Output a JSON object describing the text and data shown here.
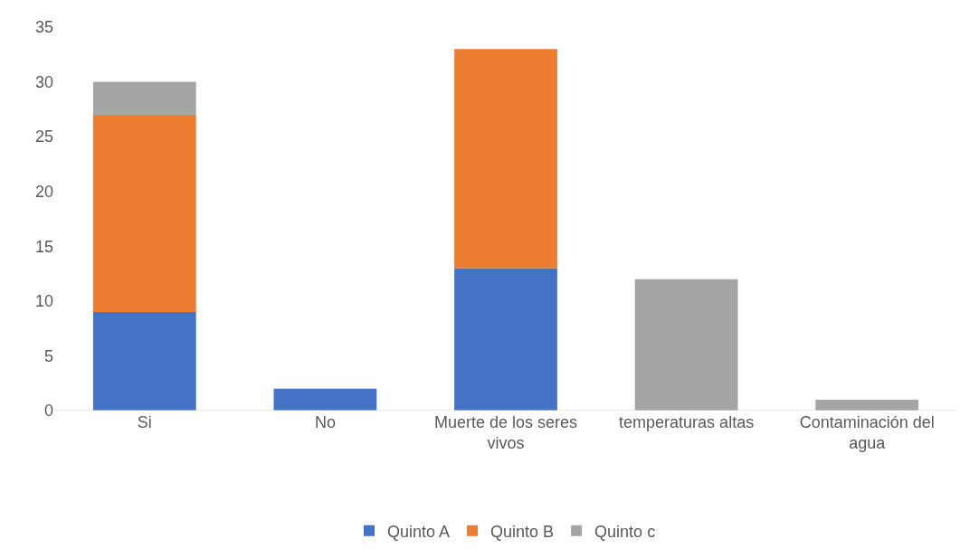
{
  "chart_data": {
    "type": "bar",
    "stacked": true,
    "categories": [
      "Si",
      "No",
      "Muerte de los seres vivos",
      "temperaturas altas",
      "Contaminación del agua"
    ],
    "series": [
      {
        "name": "Quinto A",
        "color": "#4472c4",
        "values": [
          9,
          2,
          13,
          null,
          null
        ]
      },
      {
        "name": "Quinto B",
        "color": "#ed7d31",
        "values": [
          18,
          null,
          20,
          null,
          null
        ]
      },
      {
        "name": "Quinto c",
        "color": "#a5a5a5",
        "values": [
          3,
          null,
          null,
          12,
          1
        ]
      }
    ],
    "ylim": [
      0,
      35
    ],
    "yticks": [
      0,
      5,
      10,
      15,
      20,
      25,
      30,
      35
    ],
    "grid": false,
    "legend": "bottom"
  }
}
